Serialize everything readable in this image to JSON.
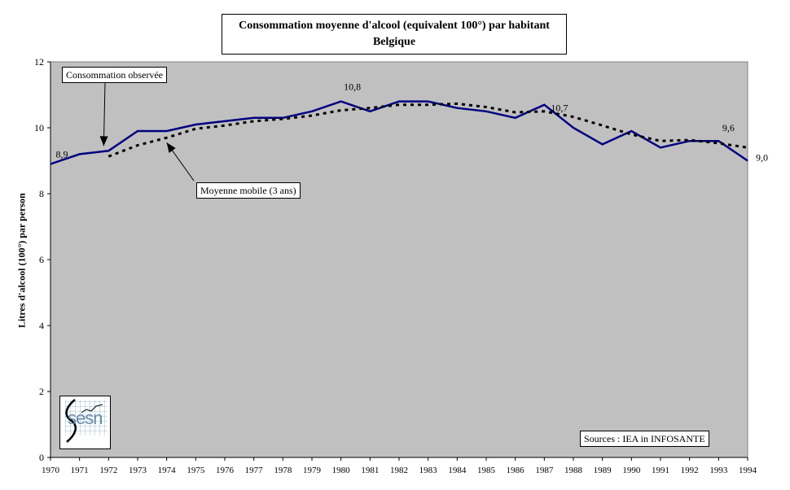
{
  "chart_data": {
    "type": "line",
    "title": "Consommation moyenne d'alcool (equivalent 100°) par habitant",
    "subtitle": "Belgique",
    "xlabel": "",
    "ylabel": "Litres d'alcool (100°) par person",
    "x": [
      "1970",
      "1971",
      "1972",
      "1973",
      "1974",
      "1975",
      "1976",
      "1977",
      "1978",
      "1979",
      "1980",
      "1981",
      "1982",
      "1983",
      "1984",
      "1985",
      "1986",
      "1987",
      "1988",
      "1989",
      "1990",
      "1991",
      "1992",
      "1993",
      "1994"
    ],
    "ylim": [
      0,
      12
    ],
    "yticks": [
      "0",
      "2",
      "4",
      "6",
      "8",
      "10",
      "12"
    ],
    "grid": false,
    "plot_background": "#c0c0c0",
    "series": [
      {
        "key": "observed",
        "style": "solid",
        "color": "#000080",
        "values": [
          8.9,
          9.2,
          9.3,
          9.9,
          9.9,
          10.1,
          10.2,
          10.3,
          10.3,
          10.5,
          10.8,
          10.5,
          10.8,
          10.8,
          10.6,
          10.5,
          10.3,
          10.7,
          10.0,
          9.5,
          9.9,
          9.4,
          9.6,
          9.6,
          9.0
        ]
      },
      {
        "key": "moving_average",
        "style": "dotted",
        "color": "#000000",
        "values": [
          null,
          null,
          9.13,
          9.47,
          9.7,
          9.97,
          10.07,
          10.2,
          10.27,
          10.37,
          10.53,
          10.6,
          10.7,
          10.7,
          10.73,
          10.63,
          10.47,
          10.5,
          10.33,
          10.07,
          9.8,
          9.6,
          9.63,
          9.53,
          9.4
        ]
      }
    ],
    "data_labels": [
      {
        "x": "1970",
        "y": 8.9,
        "text": "8,9"
      },
      {
        "x": "1980",
        "y": 10.8,
        "text": "10,8"
      },
      {
        "x": "1987",
        "y": 10.7,
        "text": "10,7"
      },
      {
        "x": "1993",
        "y": 9.6,
        "text": "9,6"
      },
      {
        "x": "1994",
        "y": 9.0,
        "text": "9,0"
      }
    ],
    "annotations": {
      "observed": {
        "text": "Consommation observée",
        "points_to": {
          "x": "1972",
          "y": 9.3
        }
      },
      "moving_average": {
        "text": "Moyenne mobile (3 ans)",
        "points_to": {
          "x": "1974",
          "y": 9.7
        }
      },
      "source": {
        "text": "Sources : IEA in INFOSANTE"
      }
    }
  },
  "logo": {
    "text": "sesn",
    "icon": "sesn-logo-icon"
  }
}
